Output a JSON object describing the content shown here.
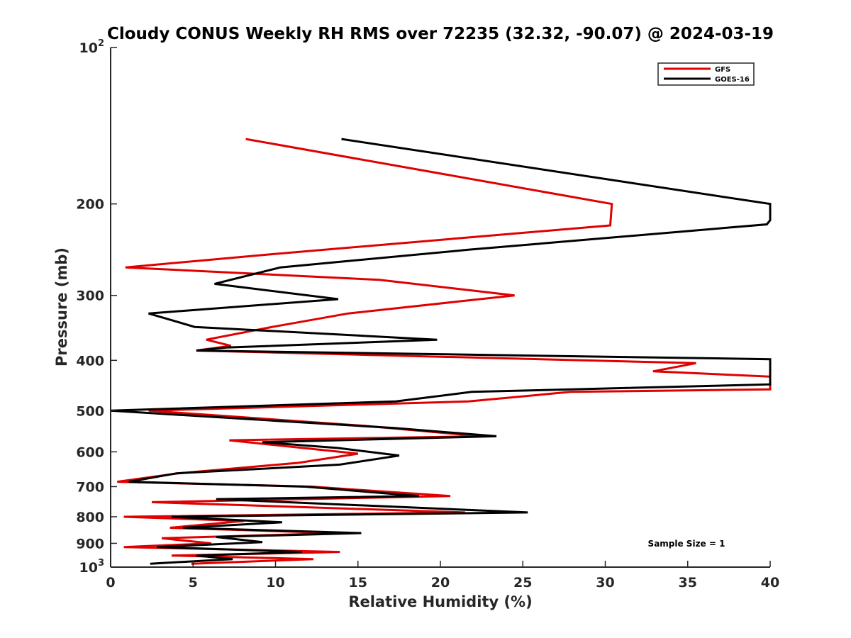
{
  "chart_data": {
    "type": "line",
    "title": "Cloudy CONUS Weekly RH RMS over 72235 (32.32, -90.07) @ 2024-03-19",
    "xlabel": "Relative Humidity (%)",
    "ylabel": "Pressure (mb)",
    "xlim": [
      0,
      40
    ],
    "ylim": [
      100,
      1000
    ],
    "yscale": "log",
    "y_reversed": true,
    "x_ticks": [
      {
        "value": 0,
        "label": "0"
      },
      {
        "value": 5,
        "label": "5"
      },
      {
        "value": 10,
        "label": "10"
      },
      {
        "value": 15,
        "label": "15"
      },
      {
        "value": 20,
        "label": "20"
      },
      {
        "value": 25,
        "label": "25"
      },
      {
        "value": 30,
        "label": "30"
      },
      {
        "value": 35,
        "label": "35"
      },
      {
        "value": 40,
        "label": "40"
      }
    ],
    "y_ticks": [
      {
        "value": 100,
        "label": "10",
        "sup": "2"
      },
      {
        "value": 200,
        "label": "200"
      },
      {
        "value": 300,
        "label": "300"
      },
      {
        "value": 400,
        "label": "400"
      },
      {
        "value": 500,
        "label": "500"
      },
      {
        "value": 600,
        "label": "600"
      },
      {
        "value": 700,
        "label": "700"
      },
      {
        "value": 800,
        "label": "800"
      },
      {
        "value": 900,
        "label": "900"
      },
      {
        "value": 1000,
        "label": "10",
        "sup": "3"
      }
    ],
    "legend_position": "top-right",
    "annotation": "Sample Size = 1",
    "grid": false,
    "series": [
      {
        "name": "GFS",
        "color": "#e00000",
        "points": [
          [
            8.2,
            150
          ],
          [
            30.4,
            200
          ],
          [
            30.3,
            220
          ],
          [
            9.7,
            250
          ],
          [
            0.9,
            265
          ],
          [
            16.3,
            280
          ],
          [
            24.5,
            300
          ],
          [
            14.4,
            325
          ],
          [
            9.8,
            345
          ],
          [
            5.8,
            365
          ],
          [
            7.3,
            375
          ],
          [
            5.2,
            383
          ],
          [
            35.5,
            405
          ],
          [
            32.9,
            420
          ],
          [
            40.0,
            430
          ],
          [
            40.0,
            455
          ],
          [
            27.9,
            460
          ],
          [
            21.7,
            480
          ],
          [
            2.3,
            500
          ],
          [
            15.5,
            535
          ],
          [
            22.5,
            560
          ],
          [
            7.2,
            570
          ],
          [
            15.0,
            605
          ],
          [
            11.4,
            630
          ],
          [
            4.1,
            660
          ],
          [
            0.4,
            685
          ],
          [
            12.2,
            700
          ],
          [
            20.6,
            730
          ],
          [
            2.5,
            750
          ],
          [
            21.5,
            785
          ],
          [
            0.8,
            800
          ],
          [
            8.1,
            815
          ],
          [
            3.6,
            840
          ],
          [
            13.8,
            860
          ],
          [
            3.1,
            880
          ],
          [
            6.1,
            900
          ],
          [
            0.8,
            915
          ],
          [
            13.9,
            935
          ],
          [
            3.7,
            950
          ],
          [
            12.3,
            965
          ],
          [
            4.9,
            985
          ]
        ]
      },
      {
        "name": "GOES-16",
        "color": "#000000",
        "points": [
          [
            14.0,
            150
          ],
          [
            40.0,
            200
          ],
          [
            40.0,
            215
          ],
          [
            39.8,
            219
          ],
          [
            21.7,
            245
          ],
          [
            10.3,
            265
          ],
          [
            6.3,
            285
          ],
          [
            13.8,
            305
          ],
          [
            2.3,
            325
          ],
          [
            5.1,
            345
          ],
          [
            19.8,
            365
          ],
          [
            7.0,
            378
          ],
          [
            5.2,
            383
          ],
          [
            40.0,
            398
          ],
          [
            40.0,
            445
          ],
          [
            21.9,
            460
          ],
          [
            17.3,
            480
          ],
          [
            0.0,
            500
          ],
          [
            17.2,
            540
          ],
          [
            23.4,
            560
          ],
          [
            9.2,
            575
          ],
          [
            13.8,
            590
          ],
          [
            17.5,
            610
          ],
          [
            13.9,
            635
          ],
          [
            4.0,
            660
          ],
          [
            1.1,
            685
          ],
          [
            11.8,
            700
          ],
          [
            18.7,
            730
          ],
          [
            6.4,
            740
          ],
          [
            25.3,
            785
          ],
          [
            3.7,
            800
          ],
          [
            10.4,
            820
          ],
          [
            4.4,
            840
          ],
          [
            15.2,
            860
          ],
          [
            6.4,
            875
          ],
          [
            9.2,
            895
          ],
          [
            2.8,
            915
          ],
          [
            11.6,
            935
          ],
          [
            5.2,
            950
          ],
          [
            7.4,
            965
          ],
          [
            2.4,
            985
          ]
        ]
      }
    ]
  }
}
